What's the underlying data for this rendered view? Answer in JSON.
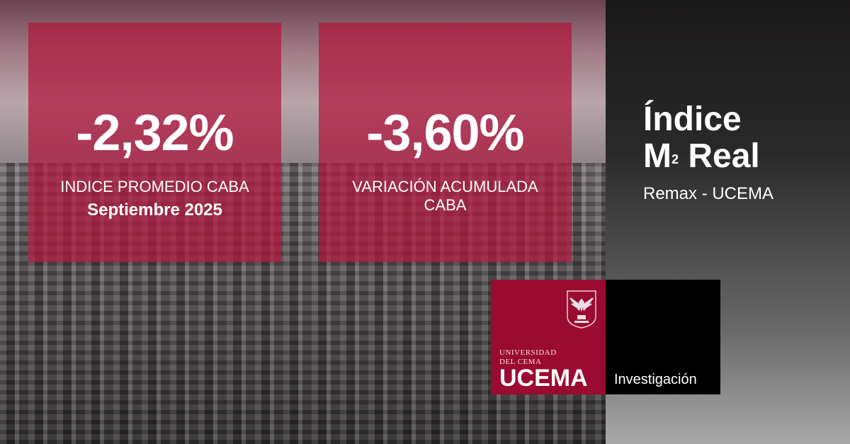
{
  "stats": [
    {
      "value": "-2,32%",
      "label": "INDICE PROMEDIO CABA",
      "sublabel": "Septiembre 2025"
    },
    {
      "value": "-3,60%",
      "label": "VARIACIÓN ACUMULADA CABA"
    }
  ],
  "title": {
    "line1": "Índice",
    "m": "M",
    "sup": "2",
    "real": "Real",
    "subtitle": "Remax - UCEMA"
  },
  "logo": {
    "univ_line1": "UNIVERSIDAD",
    "univ_line2": "DEL CEMA",
    "name": "UCEMA",
    "section": "Investigación",
    "crest_icon": "eagle-shield-icon"
  },
  "colors": {
    "brand_red": "#9b0a30",
    "overlay": "#b2163e"
  }
}
